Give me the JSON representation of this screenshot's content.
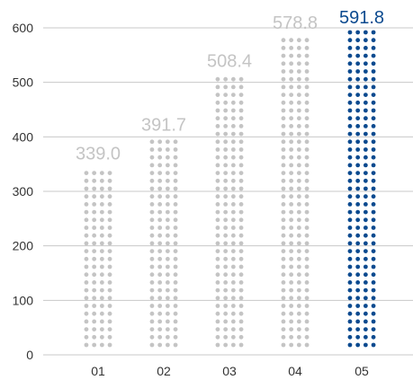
{
  "chart_data": {
    "type": "bar",
    "style": "dot-matrix columns",
    "categories": [
      "01",
      "02",
      "03",
      "04",
      "05"
    ],
    "values": [
      339.0,
      391.7,
      508.4,
      578.8,
      591.8
    ],
    "value_labels": [
      "339.0",
      "391.7",
      "508.4",
      "578.8",
      "591.8"
    ],
    "ylim": [
      0,
      600
    ],
    "y_ticks": [
      0,
      100,
      200,
      300,
      400,
      500,
      600
    ],
    "y_tick_labels": [
      "0",
      "100",
      "200",
      "300",
      "400",
      "500",
      "600"
    ],
    "grid": true,
    "highlight_index": 4,
    "colors": {
      "dot_default": "#c4c4c4",
      "dot_highlight": "#0b4a8f",
      "label_default": "#c4c4c4",
      "label_highlight": "#0b4a8f",
      "grid": "#c8c8c8",
      "axis_text": "#333333"
    }
  }
}
